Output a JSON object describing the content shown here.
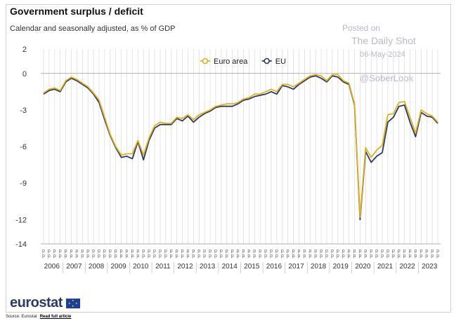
{
  "header": {
    "title": "Government surplus / deficit",
    "subtitle": "Calendar and seasonally adjusted, as % of GDP"
  },
  "watermark": {
    "line1": "Posted on",
    "line2": "The Daily Shot",
    "line3": "06-May-2024",
    "line4": "@SoberLook"
  },
  "footer": {
    "logo": "eurostat",
    "source": "Source: Eurostat",
    "link": "Read full article"
  },
  "colors": {
    "euro_area": "#e0b11e",
    "eu": "#2b3a67",
    "grid": "#d8d8d8"
  },
  "chart_data": {
    "type": "line",
    "title": "Government surplus / deficit",
    "subtitle": "Calendar and seasonally adjusted, as % of GDP",
    "ylim": [
      -14,
      2
    ],
    "yticks": [
      2,
      0,
      -3,
      -6,
      -9,
      -12,
      -14
    ],
    "grid": true,
    "legend_position": "top-center",
    "x_period_labels": [
      "2006",
      "2007",
      "2008",
      "2009",
      "2010",
      "2011",
      "2012",
      "2013",
      "2014",
      "2015",
      "2016",
      "2017",
      "2018",
      "2019",
      "2020",
      "2021",
      "2022",
      "2023"
    ],
    "x_start": "2006-Q1",
    "x_frequency": "quarterly",
    "series": [
      {
        "name": "Euro area",
        "color": "#e0b11e",
        "values": [
          -1.6,
          -1.3,
          -1.2,
          -1.4,
          -0.6,
          -0.3,
          -0.5,
          -0.8,
          -1.1,
          -1.6,
          -2.2,
          -3.6,
          -5.0,
          -6.0,
          -6.7,
          -6.6,
          -6.6,
          -5.5,
          -6.7,
          -5.3,
          -4.3,
          -4.0,
          -4.1,
          -4.1,
          -3.6,
          -3.7,
          -3.4,
          -3.8,
          -3.4,
          -3.2,
          -3.0,
          -2.7,
          -2.6,
          -2.5,
          -2.5,
          -2.4,
          -2.1,
          -2.0,
          -1.7,
          -1.7,
          -1.5,
          -1.3,
          -1.5,
          -0.9,
          -0.9,
          -1.1,
          -0.8,
          -0.5,
          -0.2,
          -0.1,
          -0.2,
          -0.6,
          -0.1,
          -0.1,
          -0.6,
          -0.8,
          -2.5,
          -11.8,
          -6.1,
          -6.9,
          -6.3,
          -5.9,
          -3.4,
          -3.3,
          -2.4,
          -2.3,
          -3.6,
          -4.9,
          -3.0,
          -3.3,
          -3.5,
          -4.0
        ]
      },
      {
        "name": "EU",
        "color": "#2b3a67",
        "values": [
          -1.7,
          -1.4,
          -1.3,
          -1.5,
          -0.7,
          -0.4,
          -0.6,
          -0.9,
          -1.2,
          -1.7,
          -2.4,
          -3.8,
          -5.1,
          -6.1,
          -6.9,
          -6.8,
          -7.0,
          -5.6,
          -7.1,
          -5.5,
          -4.5,
          -4.2,
          -4.2,
          -4.2,
          -3.7,
          -3.9,
          -3.5,
          -4.0,
          -3.6,
          -3.3,
          -3.1,
          -2.8,
          -2.7,
          -2.7,
          -2.7,
          -2.5,
          -2.2,
          -2.1,
          -1.9,
          -1.8,
          -1.7,
          -1.5,
          -1.7,
          -1.0,
          -1.1,
          -1.3,
          -0.9,
          -0.6,
          -0.3,
          -0.2,
          -0.4,
          -0.7,
          -0.2,
          -0.3,
          -0.7,
          -0.9,
          -2.6,
          -12.0,
          -6.4,
          -7.3,
          -6.8,
          -6.5,
          -4.0,
          -3.6,
          -2.7,
          -2.6,
          -4.0,
          -5.2,
          -3.2,
          -3.5,
          -3.6,
          -4.1
        ]
      }
    ]
  }
}
